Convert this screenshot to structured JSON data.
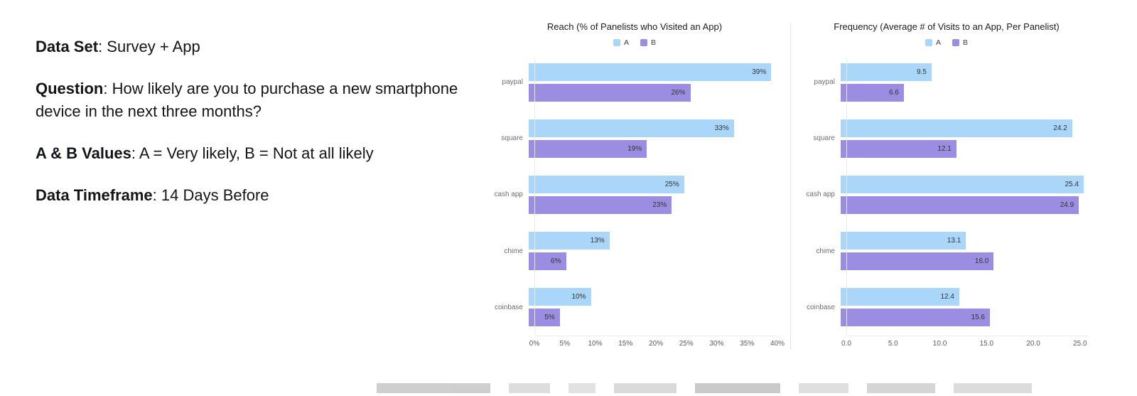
{
  "info_panel": {
    "lines": [
      {
        "label": "Data Set",
        "text": ": Survey + App"
      },
      {
        "label": "Question",
        "text": ": How likely are you to purchase a new smartphone device in the next three months?"
      },
      {
        "label": "A & B Values",
        "text": ": A = Very likely, B = Not at all likely"
      },
      {
        "label": "Data Timeframe",
        "text": ": 14 Days Before"
      }
    ]
  },
  "colors": {
    "series_a": "#aad7f9",
    "series_b": "#9b8ee2"
  },
  "chart_data": [
    {
      "type": "bar",
      "orientation": "horizontal",
      "title": "Reach (% of Panelists who Visited an App)",
      "categories": [
        "paypal",
        "square",
        "cash app",
        "chime",
        "coinbase"
      ],
      "series": [
        {
          "name": "A",
          "values": [
            39,
            33,
            25,
            13,
            10
          ],
          "labels": [
            "39%",
            "33%",
            "25%",
            "13%",
            "10%"
          ]
        },
        {
          "name": "B",
          "values": [
            26,
            19,
            23,
            6,
            5
          ],
          "labels": [
            "26%",
            "19%",
            "23%",
            "6%",
            "5%"
          ]
        }
      ],
      "x_max": 40,
      "x_ticks": [
        {
          "value": 0,
          "label": "0%"
        },
        {
          "value": 5,
          "label": "5%"
        },
        {
          "value": 10,
          "label": "10%"
        },
        {
          "value": 15,
          "label": "15%"
        },
        {
          "value": 20,
          "label": "20%"
        },
        {
          "value": 25,
          "label": "25%"
        },
        {
          "value": 30,
          "label": "30%"
        },
        {
          "value": 35,
          "label": "35%"
        },
        {
          "value": 40,
          "label": "40%"
        }
      ],
      "legend_position": "top",
      "grid": false
    },
    {
      "type": "bar",
      "orientation": "horizontal",
      "title": "Frequency (Average # of Visits to an App, Per Panelist)",
      "categories": [
        "paypal",
        "square",
        "cash app",
        "chime",
        "coinbase"
      ],
      "series": [
        {
          "name": "A",
          "values": [
            9.5,
            24.2,
            25.4,
            13.1,
            12.4
          ],
          "labels": [
            "9.5",
            "24.2",
            "25.4",
            "13.1",
            "12.4"
          ]
        },
        {
          "name": "B",
          "values": [
            6.6,
            12.1,
            24.9,
            16.0,
            15.6
          ],
          "labels": [
            "6.6",
            "12.1",
            "24.9",
            "16.0",
            "15.6"
          ]
        }
      ],
      "x_max": 26,
      "x_ticks": [
        {
          "value": 0,
          "label": "0.0"
        },
        {
          "value": 5,
          "label": "5.0"
        },
        {
          "value": 10,
          "label": "10.0"
        },
        {
          "value": 15,
          "label": "15.0"
        },
        {
          "value": 20,
          "label": "20.0"
        },
        {
          "value": 25,
          "label": "25.0"
        }
      ],
      "legend_position": "top",
      "grid": false
    }
  ]
}
